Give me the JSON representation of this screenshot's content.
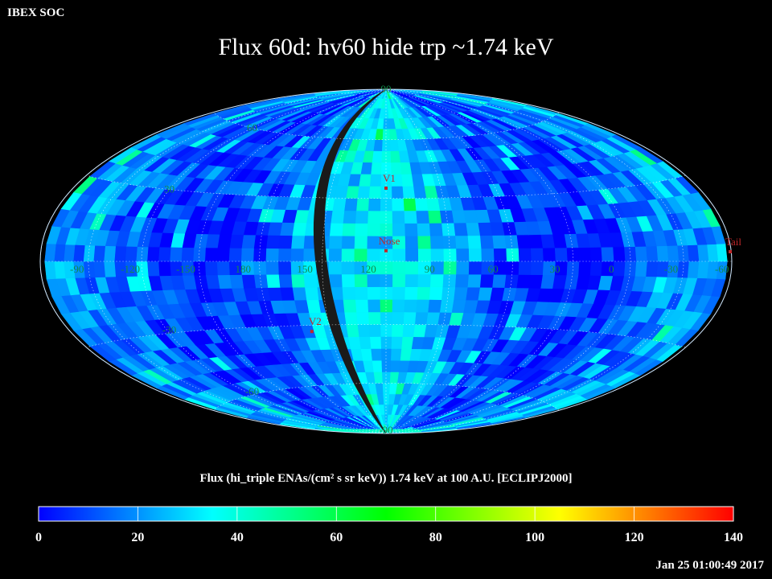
{
  "header": {
    "organization": "IBEX SOC",
    "title": "Flux   60d: hv60 hide trp ~1.74 keV"
  },
  "map": {
    "projection": "Aitoff/Hammer all-sky",
    "center_longitude": 105,
    "longitude_labels": [
      "60",
      "30",
      "0",
      "-30",
      "-60",
      "-90",
      "-120",
      "-150",
      "180",
      "150",
      "120",
      "90"
    ],
    "longitude_label_values": [
      60,
      30,
      0,
      -30,
      -60,
      -90,
      -120,
      -150,
      180,
      150,
      120,
      90
    ],
    "latitude_labels": [
      "90",
      "60",
      "30",
      "-30",
      "-60",
      "-90"
    ],
    "latitude_label_values": [
      90,
      60,
      30,
      -30,
      -60,
      -90
    ],
    "markers": [
      {
        "name": "V1",
        "lon": 105,
        "lat": 35
      },
      {
        "name": "Nose",
        "lon": 105,
        "lat": 5
      },
      {
        "name": "V2",
        "lon": 145,
        "lat": -33
      },
      {
        "name": "Tail",
        "lon": 285,
        "lat": 5
      }
    ]
  },
  "colorbar": {
    "label": "Flux (hi_triple ENAs/(cm² s sr keV))  1.74 keV at 100 A.U. [ECLIPJ2000]",
    "min": 0,
    "max": 140,
    "tick_labels": [
      "0",
      "20",
      "40",
      "60",
      "80",
      "100",
      "120",
      "140"
    ],
    "tick_values": [
      0,
      20,
      40,
      60,
      80,
      100,
      120,
      140
    ],
    "colors": [
      "#0000ff",
      "#0080ff",
      "#00ffff",
      "#00ff80",
      "#00ff00",
      "#80ff00",
      "#ffff00",
      "#ff8000",
      "#ff0000"
    ]
  },
  "footer": {
    "timestamp": "Jan 25 01:00:49 2017"
  }
}
